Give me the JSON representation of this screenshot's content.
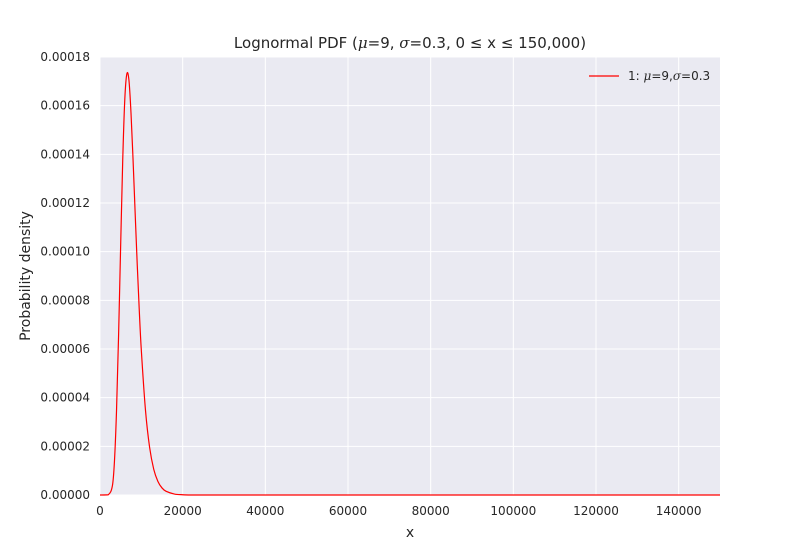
{
  "chart_data": {
    "type": "line",
    "title": {
      "prefix": "Lognormal PDF (",
      "mu_symbol": "μ",
      "mu_text": "=9, ",
      "sigma_symbol": "σ",
      "sigma_text": "=0.3, 0 ",
      "le1": "≤",
      "mid": " x ",
      "le2": "≤",
      "suffix": " 150,000)"
    },
    "xlabel": "x",
    "ylabel": "Probability density",
    "xlim": [
      0,
      150000
    ],
    "ylim": [
      0,
      0.00018
    ],
    "xticks": [
      0,
      20000,
      40000,
      60000,
      80000,
      100000,
      120000,
      140000
    ],
    "xtick_labels": [
      "0",
      "20000",
      "40000",
      "60000",
      "80000",
      "100000",
      "120000",
      "140000"
    ],
    "yticks": [
      0,
      2e-05,
      4e-05,
      6e-05,
      8e-05,
      0.0001,
      0.00012,
      0.00014,
      0.00016,
      0.00018
    ],
    "ytick_labels": [
      "0.00000",
      "0.00002",
      "0.00004",
      "0.00006",
      "0.00008",
      "0.00010",
      "0.00012",
      "0.00014",
      "0.00016",
      "0.00018"
    ],
    "grid": true,
    "legend_position": "top-right",
    "background": "#eaeaf2",
    "series": [
      {
        "name": "1: μ=9,σ=0.3",
        "legend": {
          "prefix": "1: ",
          "mu_symbol": "μ",
          "mu_text": "=9,",
          "sigma_symbol": "σ",
          "sigma_text": "=0.3"
        },
        "color": "#ff0000",
        "x": [
          0,
          2000,
          3000,
          3500,
          4000,
          4500,
          5000,
          5500,
          6000,
          6500,
          7000,
          7500,
          8000,
          8500,
          9000,
          9500,
          10000,
          11000,
          12000,
          13000,
          14000,
          15000,
          16000,
          18000,
          20000,
          22000,
          25000,
          30000,
          40000,
          60000,
          100000,
          150000
        ],
        "y": [
          0,
          1e-07,
          3.8e-06,
          1.4e-05,
          3.48e-05,
          6.59e-05,
          0.0001028,
          0.0001377,
          0.0001626,
          0.0001731,
          0.0001705,
          0.000157,
          0.0001376,
          0.0001161,
          9.5e-05,
          7.59e-05,
          5.94e-05,
          3.49e-05,
          1.96e-05,
          1.06e-05,
          5.6e-06,
          2.9e-06,
          1.5e-06,
          4e-07,
          1e-07,
          0,
          0,
          0,
          0,
          0,
          0,
          0
        ]
      }
    ]
  }
}
